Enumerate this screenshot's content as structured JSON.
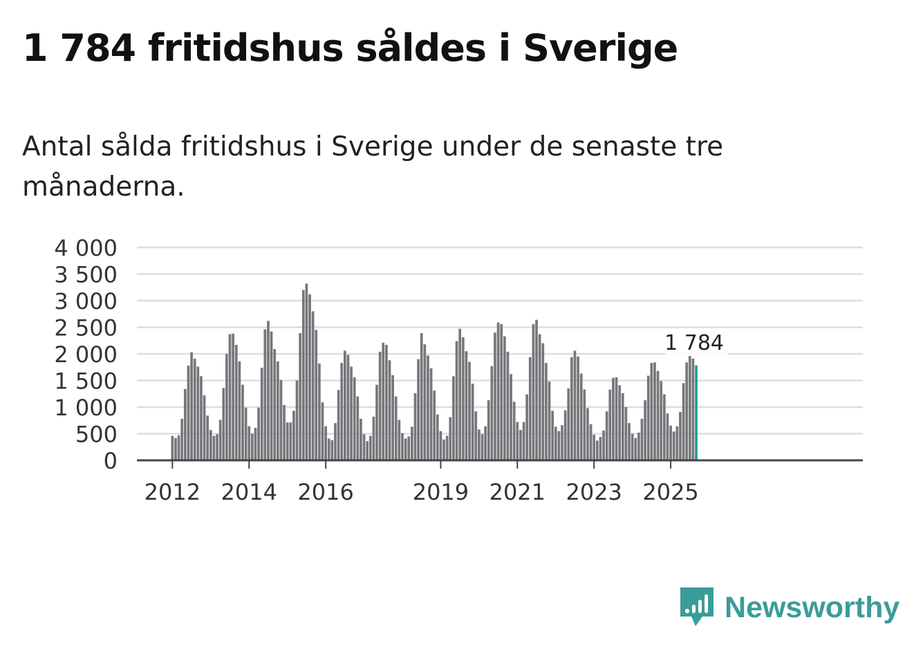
{
  "header": {
    "title": "1 784 fritidshus såldes i Sverige",
    "subtitle": "Antal sålda fritidshus i Sverige under de senaste tre månaderna."
  },
  "brand": {
    "name": "Newsworthy",
    "icon": "newsworthy-logo-icon",
    "color": "#3a9c98"
  },
  "colors": {
    "bar": "#77767b",
    "highlight": "#21999a",
    "grid": "#dddddd",
    "axis": "#444444"
  },
  "chart_data": {
    "type": "bar",
    "start": "2012-01",
    "frequency": "monthly",
    "ylim": [
      0,
      4000
    ],
    "yticks": [
      0,
      500,
      1000,
      1500,
      2000,
      2500,
      3000,
      3500,
      4000
    ],
    "ytick_labels": [
      "0",
      "500",
      "1 000",
      "1 500",
      "2 000",
      "2 500",
      "3 000",
      "3 500",
      "4 000"
    ],
    "xtick_labels": [
      "2012",
      "2014",
      "2016",
      "2019",
      "2021",
      "2023",
      "2025"
    ],
    "highlight_label": "1 784",
    "grid": true,
    "values": [
      460,
      420,
      470,
      780,
      1340,
      1780,
      2030,
      1910,
      1760,
      1580,
      1220,
      840,
      570,
      460,
      490,
      760,
      1360,
      2000,
      2370,
      2380,
      2170,
      1860,
      1420,
      990,
      640,
      500,
      610,
      990,
      1740,
      2460,
      2620,
      2420,
      2090,
      1860,
      1510,
      1040,
      710,
      710,
      930,
      1500,
      2390,
      3200,
      3320,
      3120,
      2800,
      2450,
      1820,
      1090,
      640,
      410,
      380,
      700,
      1320,
      1830,
      2060,
      1980,
      1760,
      1560,
      1200,
      780,
      490,
      360,
      460,
      820,
      1420,
      2040,
      2210,
      2170,
      1880,
      1600,
      1200,
      760,
      510,
      410,
      450,
      630,
      1260,
      1900,
      2390,
      2180,
      1970,
      1730,
      1310,
      860,
      550,
      390,
      460,
      810,
      1580,
      2240,
      2470,
      2310,
      2050,
      1850,
      1440,
      920,
      580,
      490,
      640,
      1130,
      1770,
      2400,
      2590,
      2560,
      2330,
      2040,
      1620,
      1100,
      720,
      570,
      720,
      1240,
      1940,
      2560,
      2640,
      2370,
      2200,
      1830,
      1480,
      930,
      630,
      550,
      660,
      940,
      1350,
      1940,
      2060,
      1950,
      1630,
      1330,
      980,
      680,
      480,
      370,
      440,
      560,
      920,
      1330,
      1550,
      1560,
      1410,
      1260,
      1000,
      700,
      500,
      420,
      520,
      780,
      1130,
      1590,
      1830,
      1840,
      1680,
      1490,
      1240,
      880,
      650,
      540,
      640,
      910,
      1450,
      1840,
      1960,
      1910,
      1784
    ]
  }
}
